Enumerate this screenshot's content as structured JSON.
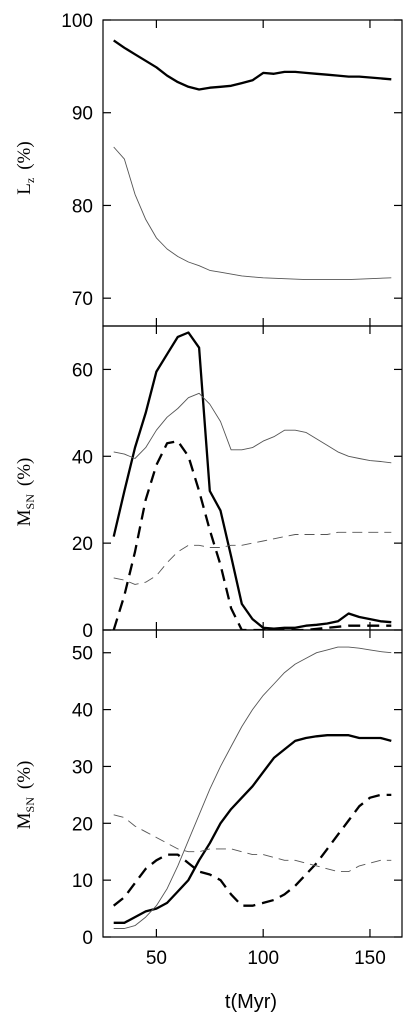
{
  "chart_data": [
    {
      "type": "line",
      "ylabel": "L_z (%)",
      "ylabel_main": "L",
      "ylabel_sub": "z",
      "ylabel_unit": "(%)",
      "xlim": [
        25,
        165
      ],
      "ylim": [
        67,
        100
      ],
      "yticks": [
        70,
        80,
        90,
        100
      ],
      "xticks": [
        50,
        100,
        150
      ],
      "show_xtick_labels": false,
      "series": [
        {
          "style": "thick-solid",
          "x": [
            30,
            35,
            40,
            45,
            50,
            55,
            60,
            65,
            70,
            75,
            80,
            85,
            90,
            95,
            100,
            105,
            110,
            115,
            120,
            125,
            130,
            135,
            140,
            145,
            150,
            155,
            160
          ],
          "y": [
            97.8,
            97.0,
            96.3,
            95.6,
            94.9,
            94.0,
            93.3,
            92.8,
            92.5,
            92.7,
            92.8,
            92.9,
            93.2,
            93.5,
            94.3,
            94.2,
            94.4,
            94.4,
            94.3,
            94.2,
            94.1,
            94.0,
            93.9,
            93.9,
            93.8,
            93.7,
            93.6
          ]
        },
        {
          "style": "thin-solid",
          "x": [
            30,
            35,
            40,
            45,
            50,
            55,
            60,
            65,
            70,
            75,
            80,
            85,
            90,
            95,
            100,
            110,
            120,
            130,
            140,
            150,
            160
          ],
          "y": [
            86.3,
            85.0,
            81.2,
            78.5,
            76.5,
            75.3,
            74.5,
            73.9,
            73.5,
            73.0,
            72.8,
            72.6,
            72.4,
            72.3,
            72.2,
            72.1,
            72.0,
            72.0,
            72.0,
            72.1,
            72.2
          ]
        }
      ]
    },
    {
      "type": "line",
      "ylabel": "M_SN (%)",
      "ylabel_main": "M",
      "ylabel_sub": "SN",
      "ylabel_unit": "(%)",
      "xlim": [
        25,
        165
      ],
      "ylim": [
        0,
        70
      ],
      "yticks": [
        0,
        20,
        40,
        60
      ],
      "xticks": [
        50,
        100,
        150
      ],
      "show_xtick_labels": false,
      "series": [
        {
          "style": "thick-solid",
          "x": [
            30,
            35,
            40,
            45,
            50,
            55,
            60,
            65,
            70,
            75,
            80,
            85,
            90,
            95,
            100,
            105,
            110,
            115,
            120,
            125,
            130,
            135,
            140,
            145,
            150,
            155,
            160
          ],
          "y": [
            21.5,
            32.0,
            42.0,
            50.0,
            59.5,
            63.5,
            67.5,
            68.5,
            65.0,
            32.0,
            27.5,
            17.0,
            6.0,
            2.5,
            0.5,
            0.3,
            0.5,
            0.5,
            1.0,
            1.2,
            1.5,
            2.0,
            3.8,
            3.0,
            2.5,
            2.0,
            1.8
          ]
        },
        {
          "style": "thin-solid",
          "x": [
            30,
            35,
            40,
            45,
            50,
            55,
            60,
            65,
            70,
            75,
            80,
            85,
            90,
            95,
            100,
            105,
            110,
            115,
            120,
            125,
            130,
            135,
            140,
            145,
            150,
            155,
            160
          ],
          "y": [
            41.0,
            40.5,
            39.5,
            42.0,
            46.0,
            49.0,
            51.0,
            53.5,
            54.5,
            52.0,
            48.0,
            41.5,
            41.5,
            42.0,
            43.5,
            44.5,
            46.0,
            46.0,
            45.5,
            44.0,
            42.5,
            41.0,
            40.0,
            39.5,
            39.0,
            38.8,
            38.5
          ]
        },
        {
          "style": "thick-dashed",
          "x": [
            30,
            35,
            40,
            45,
            50,
            55,
            60,
            65,
            70,
            75,
            80,
            85,
            90,
            95,
            100,
            110,
            120,
            130,
            140,
            150,
            160
          ],
          "y": [
            0.0,
            8.0,
            18.0,
            30.0,
            38.0,
            43.0,
            43.5,
            40.0,
            32.0,
            23.0,
            15.0,
            5.0,
            0.0,
            0.0,
            0.0,
            0.0,
            0.0,
            0.5,
            1.0,
            1.0,
            1.0
          ]
        },
        {
          "style": "thin-dashed",
          "x": [
            30,
            35,
            40,
            45,
            50,
            55,
            60,
            65,
            70,
            75,
            80,
            85,
            90,
            95,
            100,
            105,
            110,
            115,
            120,
            125,
            130,
            135,
            140,
            145,
            150,
            155,
            160
          ],
          "y": [
            12.0,
            11.5,
            10.5,
            11.0,
            12.5,
            15.5,
            18.0,
            19.5,
            19.5,
            19.0,
            19.0,
            19.5,
            19.5,
            20.0,
            20.5,
            21.0,
            21.5,
            22.0,
            22.0,
            22.0,
            22.0,
            22.5,
            22.5,
            22.5,
            22.5,
            22.5,
            22.5
          ]
        }
      ]
    },
    {
      "type": "line",
      "ylabel": "M_SN (%)",
      "ylabel_main": "M",
      "ylabel_sub": "SN",
      "ylabel_unit": "(%)",
      "xlabel": "t(Myr)",
      "xlim": [
        25,
        165
      ],
      "ylim": [
        0,
        54
      ],
      "yticks": [
        0,
        10,
        20,
        30,
        40,
        50
      ],
      "xticks": [
        50,
        100,
        150
      ],
      "show_xtick_labels": true,
      "series": [
        {
          "style": "thick-solid",
          "x": [
            30,
            35,
            40,
            45,
            50,
            55,
            60,
            65,
            70,
            75,
            80,
            85,
            90,
            95,
            100,
            105,
            110,
            115,
            120,
            125,
            130,
            135,
            140,
            145,
            150,
            155,
            160
          ],
          "y": [
            2.5,
            2.5,
            3.5,
            4.5,
            5.0,
            6.0,
            8.0,
            10.0,
            13.5,
            16.5,
            20.0,
            22.5,
            24.5,
            26.5,
            29.0,
            31.5,
            33.0,
            34.5,
            35.0,
            35.3,
            35.5,
            35.5,
            35.5,
            35.0,
            35.0,
            35.0,
            34.5
          ]
        },
        {
          "style": "thin-solid",
          "x": [
            30,
            35,
            40,
            45,
            50,
            55,
            60,
            65,
            70,
            75,
            80,
            85,
            90,
            95,
            100,
            105,
            110,
            115,
            120,
            125,
            130,
            135,
            140,
            145,
            150,
            155,
            160
          ],
          "y": [
            1.5,
            1.5,
            2.0,
            3.5,
            5.5,
            8.5,
            12.5,
            17.0,
            21.5,
            26.0,
            30.0,
            33.5,
            37.0,
            40.0,
            42.5,
            44.5,
            46.5,
            48.0,
            49.0,
            50.0,
            50.5,
            51.0,
            51.0,
            50.8,
            50.5,
            50.2,
            50.0
          ]
        },
        {
          "style": "thick-dashed",
          "x": [
            30,
            35,
            40,
            45,
            50,
            55,
            60,
            65,
            70,
            75,
            80,
            85,
            90,
            95,
            100,
            105,
            110,
            115,
            120,
            125,
            130,
            135,
            140,
            145,
            150,
            155,
            160
          ],
          "y": [
            5.5,
            7.0,
            9.5,
            12.0,
            13.5,
            14.5,
            14.5,
            13.0,
            11.5,
            11.0,
            10.0,
            7.5,
            5.5,
            5.5,
            6.0,
            6.5,
            7.5,
            9.0,
            11.0,
            13.0,
            15.5,
            18.0,
            20.5,
            23.0,
            24.5,
            25.0,
            25.0
          ]
        },
        {
          "style": "thin-dashed",
          "x": [
            30,
            35,
            40,
            45,
            50,
            55,
            60,
            65,
            70,
            75,
            80,
            85,
            90,
            95,
            100,
            105,
            110,
            115,
            120,
            125,
            130,
            135,
            140,
            145,
            150,
            155,
            160
          ],
          "y": [
            21.5,
            21.0,
            19.5,
            18.5,
            17.5,
            16.5,
            15.5,
            15.0,
            15.0,
            15.5,
            15.5,
            15.5,
            15.0,
            14.5,
            14.5,
            14.0,
            13.5,
            13.5,
            13.0,
            12.5,
            12.0,
            11.5,
            11.5,
            12.5,
            13.0,
            13.5,
            13.5
          ]
        }
      ]
    }
  ]
}
